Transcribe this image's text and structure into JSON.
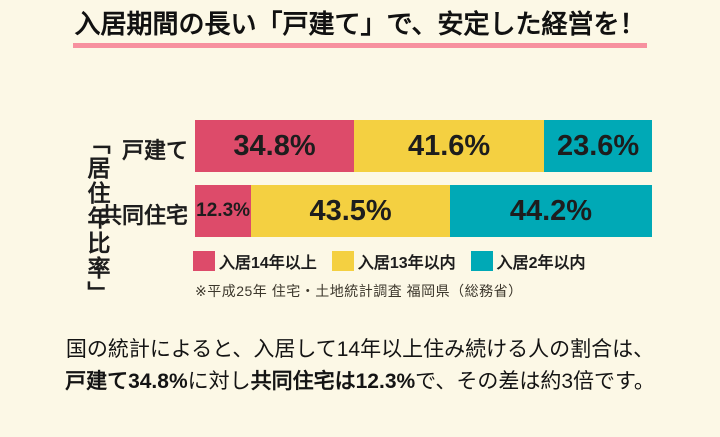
{
  "page": {
    "background_color": "#fcf8e6",
    "title": "入居期間の長い「戸建て」で、安定した経営を！",
    "title_underline_color": "#f7919f"
  },
  "chart_data": {
    "type": "bar",
    "variant": "horizontal_stacked_100pct",
    "axis_label": "「居住年比率」",
    "categories": [
      "戸建て",
      "共同住宅"
    ],
    "series": [
      {
        "name": "入居14年以上",
        "color": "#dd4b6a",
        "values": [
          34.8,
          12.3
        ]
      },
      {
        "name": "入居13年以内",
        "color": "#f4d041",
        "values": [
          41.6,
          43.5
        ]
      },
      {
        "name": "入居2年以内",
        "color": "#00a9b6",
        "values": [
          23.6,
          44.2
        ]
      }
    ],
    "value_suffix": "%",
    "xlim": [
      0,
      100
    ],
    "legend_position": "bottom",
    "grid": false,
    "source": "※平成25年 住宅・土地統計調査 福岡県（総務省）"
  },
  "caption": {
    "line1": "国の統計によると、入居して14年以上住み続ける人の割合は、",
    "line2_parts": [
      {
        "text": "戸建て34.8%",
        "bold": true
      },
      {
        "text": "に対し",
        "bold": false
      },
      {
        "text": "共同住宅は12.3%",
        "bold": true
      },
      {
        "text": "で、その差は約3倍です。",
        "bold": false
      }
    ]
  }
}
